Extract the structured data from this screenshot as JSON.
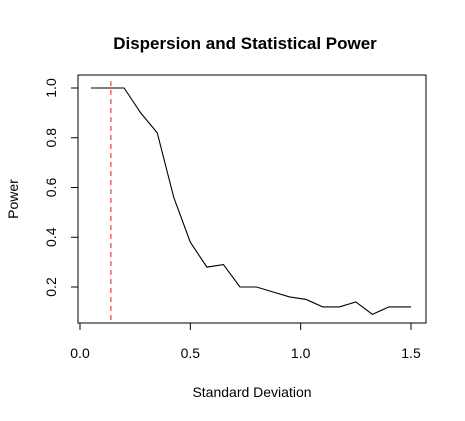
{
  "chart_data": {
    "type": "line",
    "title": "Dispersion and Statistical Power",
    "xlabel": "Standard Deviation",
    "ylabel": "Power",
    "xlim": [
      0.0,
      1.5
    ],
    "ylim": [
      0.1,
      1.0
    ],
    "x_ticks": [
      {
        "value": 0.0,
        "label": "0.0"
      },
      {
        "value": 0.5,
        "label": "0.5"
      },
      {
        "value": 1.0,
        "label": "1.0"
      },
      {
        "value": 1.5,
        "label": "1.5"
      }
    ],
    "y_ticks": [
      {
        "value": 0.2,
        "label": "0.2"
      },
      {
        "value": 0.4,
        "label": "0.4"
      },
      {
        "value": 0.6,
        "label": "0.6"
      },
      {
        "value": 0.8,
        "label": "0.8"
      },
      {
        "value": 1.0,
        "label": "1.0"
      }
    ],
    "series": [
      {
        "x": [
          0.05,
          0.125,
          0.2,
          0.275,
          0.35,
          0.425,
          0.5,
          0.575,
          0.65,
          0.725,
          0.8,
          0.875,
          0.95,
          1.025,
          1.1,
          1.175,
          1.25,
          1.325,
          1.4,
          1.5
        ],
        "y": [
          1.0,
          1.0,
          1.0,
          0.9,
          0.82,
          0.56,
          0.38,
          0.28,
          0.29,
          0.2,
          0.2,
          0.18,
          0.16,
          0.15,
          0.12,
          0.12,
          0.14,
          0.09,
          0.12,
          0.12
        ],
        "color": "#000000"
      }
    ],
    "reference_line": {
      "orientation": "vertical",
      "x": 0.14,
      "color": "#e0404a",
      "style": "dashed"
    },
    "grid": false,
    "legend": "none"
  }
}
